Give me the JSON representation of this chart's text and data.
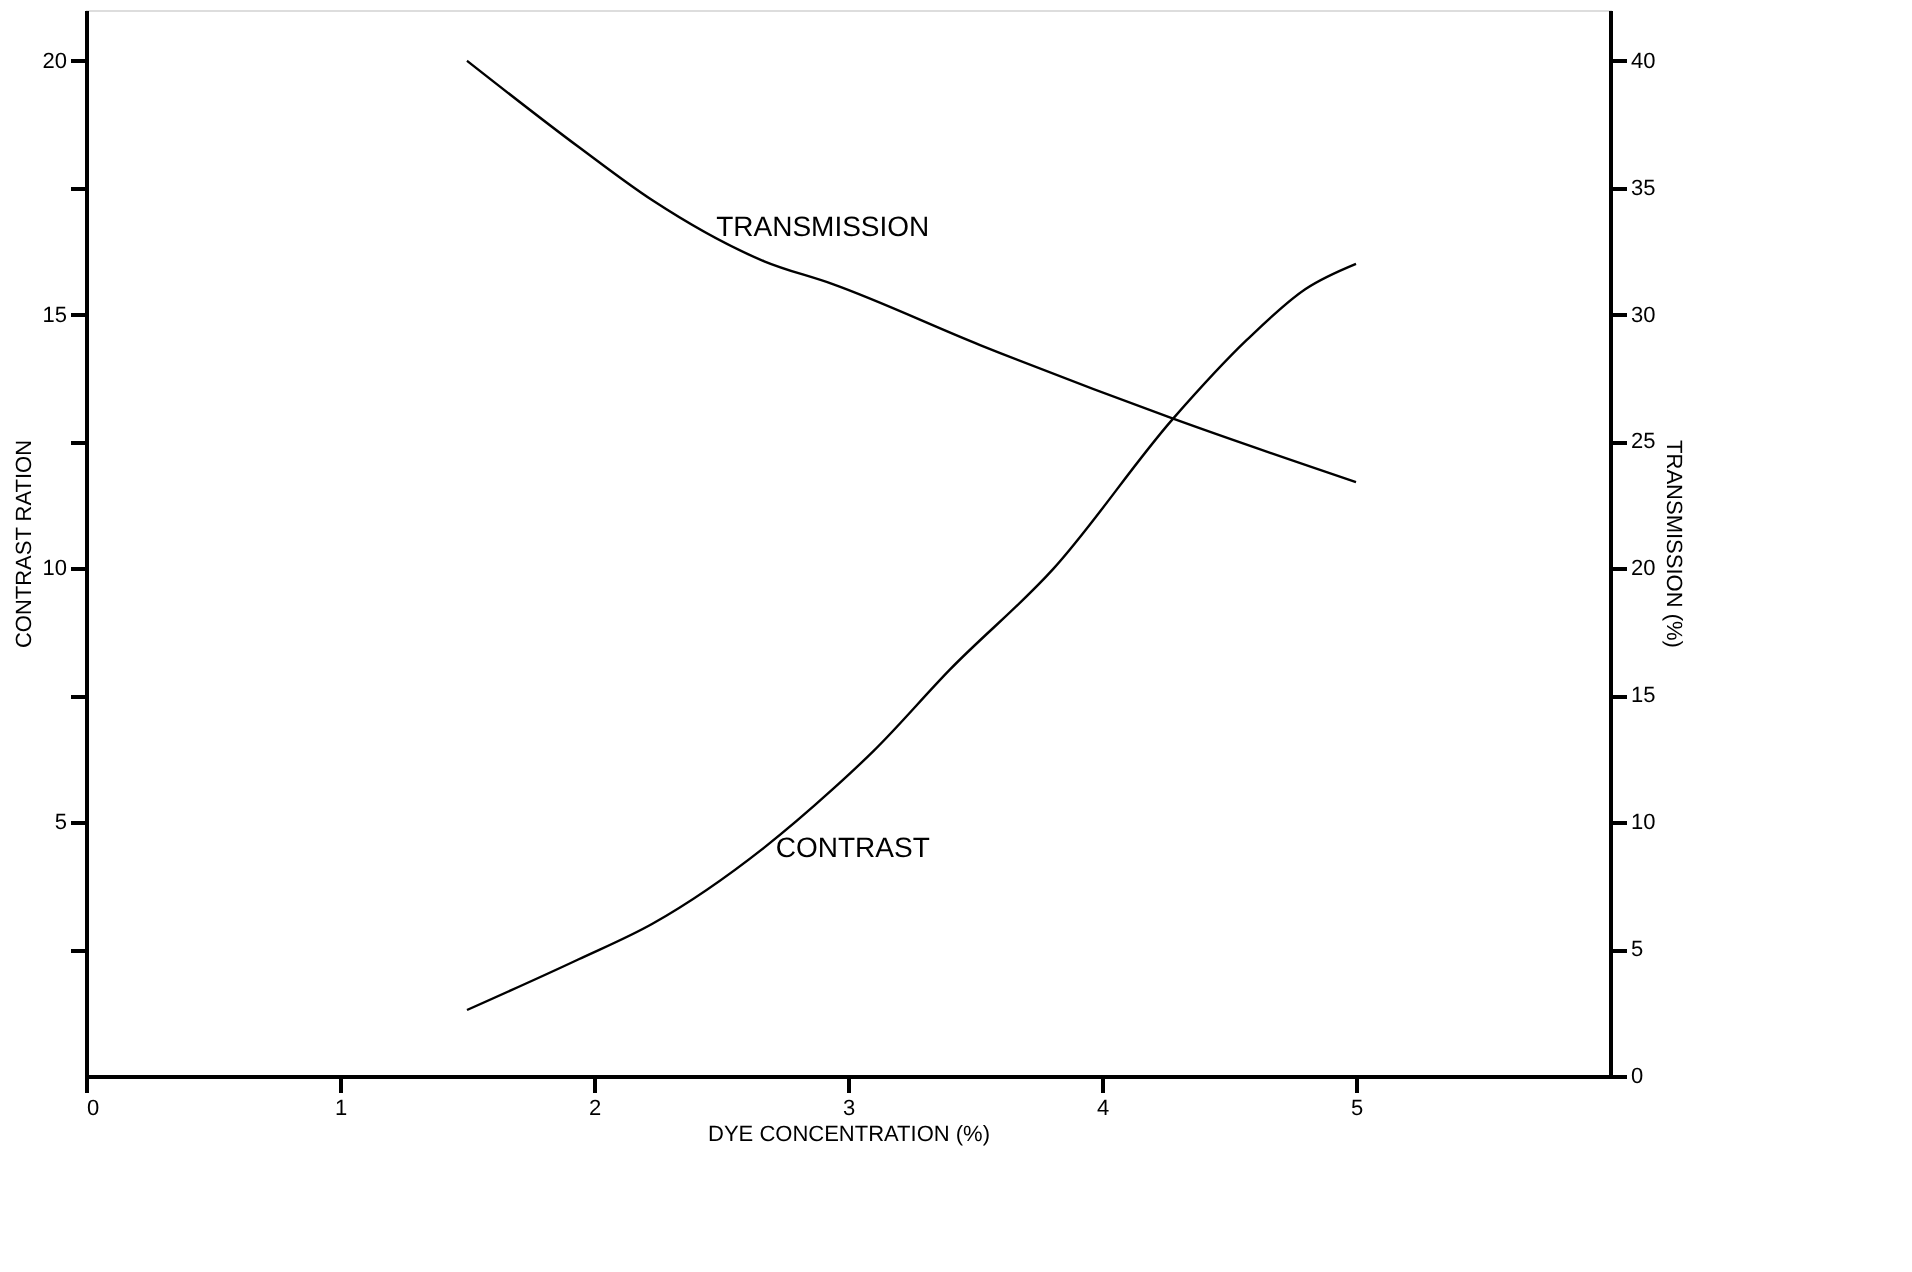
{
  "chart_data": {
    "type": "line",
    "xlabel": "DYE CONCENTRATION (%)",
    "ylabel": "CONTRAST RATION",
    "y2label": "TRANSMISSION (%)",
    "x": [
      1.5,
      1.94,
      2.23,
      2.67,
      2.94,
      3.1,
      3.4,
      3.81,
      4.28,
      4.57,
      4.8,
      5.0
    ],
    "series": [
      {
        "name": "CONTRAST",
        "color": "#000000",
        "values": [
          1.3,
          2.3,
          3.0,
          4.5,
          5.65,
          6.4,
          8.0,
          10.0,
          12.95,
          14.5,
          15.5,
          16.0
        ]
      },
      {
        "name": "TRANSMISSION",
        "color": "#000000",
        "axis": "y2",
        "x": [
          1.5,
          1.94,
          2.23,
          2.67,
          2.94,
          3.52,
          4.28,
          5.0
        ],
        "values": [
          40.0,
          36.6,
          34.5,
          32.1,
          31.2,
          28.8,
          25.9,
          23.4
        ]
      }
    ],
    "xlim": [
      0,
      6
    ],
    "xticks": [
      0,
      1,
      2,
      3,
      4,
      5
    ],
    "ylim": [
      0,
      21
    ],
    "yticks": [
      {
        "value": 2.5,
        "label": null
      },
      5,
      {
        "value": 7.5,
        "label": null
      },
      10,
      {
        "value": 12.5,
        "label": null
      },
      15,
      {
        "value": 17.5,
        "label": null
      },
      20
    ],
    "y2lim": [
      0,
      42
    ],
    "y2ticks": [
      0,
      5,
      10,
      15,
      20,
      25,
      30,
      35,
      40
    ],
    "grid": false
  }
}
